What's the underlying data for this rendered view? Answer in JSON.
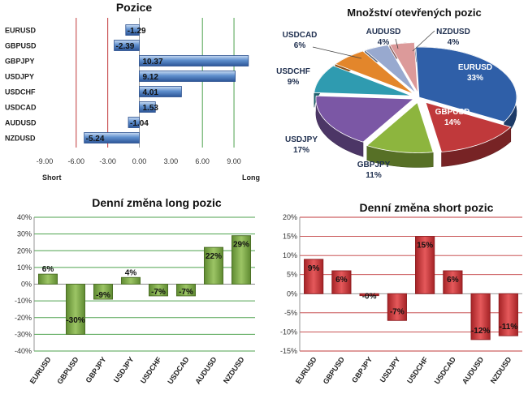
{
  "chart_data": [
    {
      "type": "bar",
      "orientation": "horizontal",
      "title": "Pozice",
      "categories": [
        "EURUSD",
        "GBPUSD",
        "GBPJPY",
        "USDJPY",
        "USDCHF",
        "USDCAD",
        "AUDUSD",
        "NZDUSD"
      ],
      "values": [
        -1.29,
        -2.39,
        10.37,
        9.12,
        4.01,
        1.53,
        -1.04,
        -5.24
      ],
      "value_labels": [
        "-1.29",
        "-2.39",
        "10.37",
        "9.12",
        "4.01",
        "1.53",
        "-1.04",
        "-5.24"
      ],
      "xlim": [
        -9,
        10.5
      ],
      "xticks": [
        "-9.00",
        "-6.00",
        "-3.00",
        "0.00",
        "3.00",
        "6.00",
        "9.00"
      ],
      "xtick_values": [
        -9,
        -6,
        -3,
        0,
        3,
        6,
        9
      ],
      "left_label": "Short",
      "right_label": "Long",
      "red_lines": [
        -6,
        -3
      ],
      "green_lines": [
        6,
        9
      ],
      "bar_color": "#3f6fb4"
    },
    {
      "type": "pie",
      "title": "Množství otevřených pozic",
      "slices": [
        {
          "label": "EURUSD",
          "value": 33,
          "value_label": "33%",
          "color": "#2f5fa8"
        },
        {
          "label": "GBPUSD",
          "value": 14,
          "value_label": "14%",
          "color": "#c0393b"
        },
        {
          "label": "GBPJPY",
          "value": 11,
          "value_label": "11%",
          "color": "#8db53e"
        },
        {
          "label": "USDJPY",
          "value": 17,
          "value_label": "17%",
          "color": "#7b57a5"
        },
        {
          "label": "USDCHF",
          "value": 9,
          "value_label": "9%",
          "color": "#2f9bb0"
        },
        {
          "label": "USDCAD",
          "value": 6,
          "value_label": "6%",
          "color": "#e3862b"
        },
        {
          "label": "AUDUSD",
          "value": 4,
          "value_label": "4%",
          "color": "#98a9cf"
        },
        {
          "label": "NZDUSD",
          "value": 4,
          "value_label": "4%",
          "color": "#dc9a9a"
        }
      ]
    },
    {
      "type": "bar",
      "title": "Denní změna long pozic",
      "categories": [
        "EURUSD",
        "GBPUSD",
        "GBPJPY",
        "USDJPY",
        "USDCHF",
        "USDCAD",
        "AUDUSD",
        "NZDUSD"
      ],
      "values": [
        6,
        -30,
        -9,
        4,
        -7,
        -7,
        22,
        29
      ],
      "value_labels": [
        "6%",
        "-30%",
        "-9%",
        "4%",
        "-7%",
        "-7%",
        "22%",
        "29%"
      ],
      "ylim": [
        -40,
        40
      ],
      "yticks": [
        "40%",
        "30%",
        "20%",
        "10%",
        "0%",
        "-10%",
        "-20%",
        "-30%",
        "-40%"
      ],
      "ytick_values": [
        40,
        30,
        20,
        10,
        0,
        -10,
        -20,
        -30,
        -40
      ],
      "grid": true,
      "grid_color": "#4ea24e",
      "bar_color": "#7fa84d"
    },
    {
      "type": "bar",
      "title": "Denní změna short pozic",
      "categories": [
        "EURUSD",
        "GBPUSD",
        "GBPJPY",
        "USDJPY",
        "USDCHF",
        "USDCAD",
        "AUDUSD",
        "NZDUSD"
      ],
      "values": [
        9,
        6,
        -0.5,
        -7,
        15,
        6,
        -12,
        -11
      ],
      "value_labels": [
        "9%",
        "6%",
        "-0%",
        "-7%",
        "15%",
        "6%",
        "-12%",
        "-11%"
      ],
      "ylim": [
        -15,
        20
      ],
      "yticks": [
        "20%",
        "15%",
        "10%",
        "5%",
        "0%",
        "-5%",
        "-10%",
        "-15%"
      ],
      "ytick_values": [
        20,
        15,
        10,
        5,
        0,
        -5,
        -10,
        -15
      ],
      "grid": true,
      "grid_color": "#c0393b",
      "bar_color": "#d23a3a"
    }
  ]
}
